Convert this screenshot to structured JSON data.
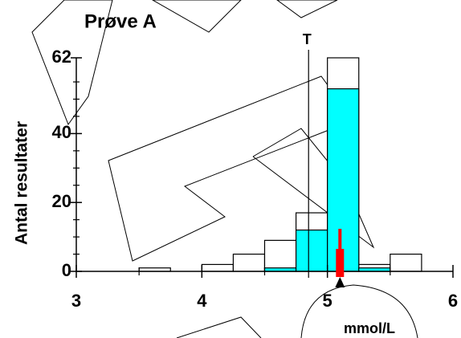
{
  "chart_data": {
    "type": "histogram",
    "title": "Prøve A",
    "xlabel": "mmol/L",
    "ylabel": "Antal resultater",
    "bins": [
      3,
      3.25,
      3.5,
      3.75,
      4,
      4.25,
      4.5,
      4.75,
      5,
      5.25,
      5.5,
      5.75,
      6
    ],
    "series": [
      {
        "color": "#ffffff",
        "values": [
          0,
          0,
          1,
          0,
          2,
          5,
          9,
          17,
          62,
          2,
          5,
          0
        ]
      },
      {
        "color": "#00ffff",
        "values": [
          0,
          0,
          0,
          0,
          0,
          0,
          1,
          12,
          53,
          1,
          0,
          0
        ]
      }
    ],
    "xlim": [
      3,
      6
    ],
    "xticks": [
      3,
      4,
      5,
      6
    ],
    "xminor": [
      3.5,
      4.5,
      5.5
    ],
    "ylim": [
      0,
      62
    ],
    "yticks": [
      0,
      20,
      40,
      62
    ],
    "yminor": [
      5,
      10,
      15,
      25,
      30,
      35,
      45,
      50,
      55
    ],
    "target": {
      "label": "T",
      "x": 4.85
    },
    "marker": {
      "x": 5.1,
      "color": "#ff0000"
    }
  }
}
